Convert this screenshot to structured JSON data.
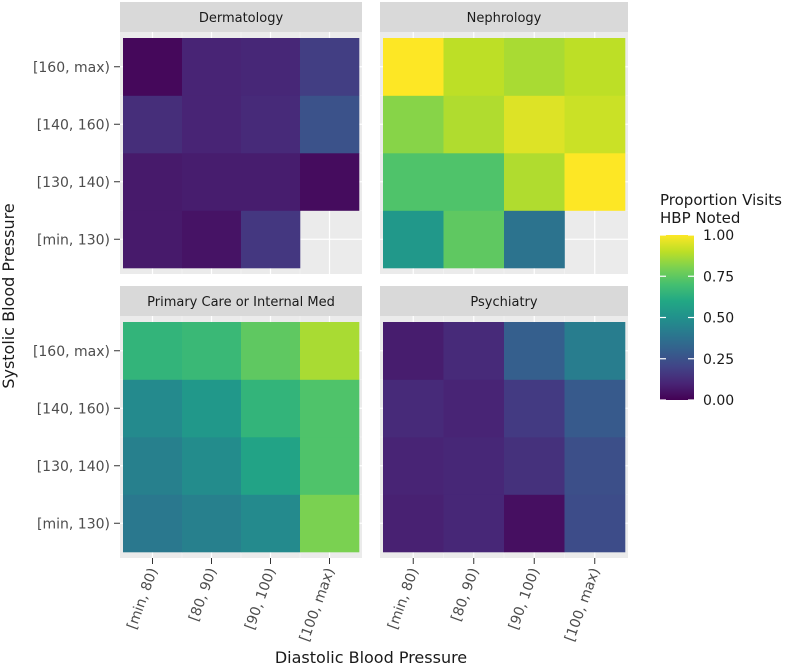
{
  "chart_data": {
    "type": "heatmap",
    "xlabel": "Diastolic Blood Pressure",
    "ylabel": "Systolic Blood Pressure",
    "x_categories": [
      "[min, 80)",
      "[80, 90)",
      "[90, 100)",
      "[100, max)"
    ],
    "y_categories": [
      "[min, 130)",
      "[130, 140)",
      "[140, 160)",
      "[160, max)"
    ],
    "legend": {
      "title_line1": "Proportion Visits",
      "title_line2": "HBP Noted",
      "ticks": [
        "0.00",
        "0.25",
        "0.50",
        "0.75",
        "1.00"
      ],
      "range": [
        0,
        1
      ],
      "colorscale": "viridis",
      "placement": "right"
    },
    "panels": [
      {
        "name": "Dermatology",
        "values": [
          [
            0.07,
            0.05,
            0.16,
            null
          ],
          [
            0.07,
            0.08,
            0.08,
            0.03
          ],
          [
            0.13,
            0.1,
            0.12,
            0.25
          ],
          [
            0.02,
            0.1,
            0.11,
            0.18
          ]
        ]
      },
      {
        "name": "Nephrology",
        "values": [
          [
            0.53,
            0.75,
            0.38,
            null
          ],
          [
            0.72,
            0.72,
            0.88,
            1.0
          ],
          [
            0.82,
            0.88,
            0.95,
            0.92
          ],
          [
            1.0,
            0.9,
            0.87,
            0.9
          ]
        ]
      },
      {
        "name": "Primary Care or Internal Med",
        "values": [
          [
            0.4,
            0.43,
            0.47,
            0.8
          ],
          [
            0.43,
            0.48,
            0.58,
            0.72
          ],
          [
            0.47,
            0.53,
            0.65,
            0.72
          ],
          [
            0.65,
            0.67,
            0.75,
            0.87
          ]
        ]
      },
      {
        "name": "Psychiatry",
        "values": [
          [
            0.09,
            0.11,
            0.04,
            0.23
          ],
          [
            0.1,
            0.11,
            0.14,
            0.24
          ],
          [
            0.12,
            0.1,
            0.17,
            0.28
          ],
          [
            0.08,
            0.12,
            0.3,
            0.42
          ]
        ]
      }
    ]
  }
}
